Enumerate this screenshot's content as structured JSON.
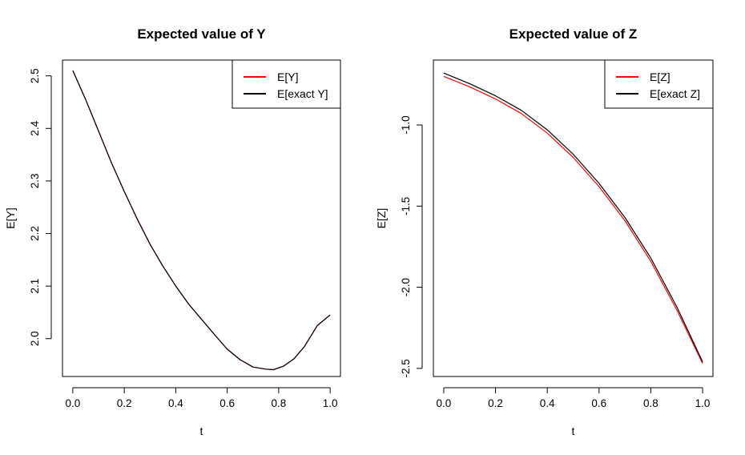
{
  "chart_data": [
    {
      "type": "line",
      "title": "Expected value of Y",
      "xlabel": "t",
      "ylabel": "E[Y]",
      "xlim": [
        -0.04,
        1.04
      ],
      "ylim": [
        1.928,
        2.53
      ],
      "xticks": [
        0.0,
        0.2,
        0.4,
        0.6,
        0.8,
        1.0
      ],
      "xtick_labels": [
        "0.0",
        "0.2",
        "0.4",
        "0.6",
        "0.8",
        "1.0"
      ],
      "yticks": [
        2.0,
        2.1,
        2.2,
        2.3,
        2.4,
        2.5
      ],
      "ytick_labels": [
        "2.0",
        "2.1",
        "2.2",
        "2.3",
        "2.4",
        "2.5"
      ],
      "legend_position": "top-right",
      "series": [
        {
          "name": "E[Y]",
          "color": "#ff0000",
          "x": [
            0.0,
            0.05,
            0.1,
            0.15,
            0.2,
            0.25,
            0.3,
            0.35,
            0.4,
            0.45,
            0.5,
            0.55,
            0.6,
            0.65,
            0.7,
            0.75,
            0.78,
            0.82,
            0.86,
            0.9,
            0.95,
            1.0
          ],
          "y": [
            2.51,
            2.455,
            2.395,
            2.335,
            2.28,
            2.228,
            2.18,
            2.138,
            2.1,
            2.066,
            2.037,
            2.008,
            1.98,
            1.96,
            1.946,
            1.942,
            1.941,
            1.948,
            1.962,
            1.985,
            2.025,
            2.045
          ]
        },
        {
          "name": "E[exact Y]",
          "color": "#000000",
          "x": [
            0.0,
            0.05,
            0.1,
            0.15,
            0.2,
            0.25,
            0.3,
            0.35,
            0.4,
            0.45,
            0.5,
            0.55,
            0.6,
            0.65,
            0.7,
            0.75,
            0.78,
            0.82,
            0.86,
            0.9,
            0.95,
            1.0
          ],
          "y": [
            2.51,
            2.455,
            2.395,
            2.335,
            2.28,
            2.228,
            2.18,
            2.138,
            2.1,
            2.066,
            2.037,
            2.008,
            1.98,
            1.96,
            1.946,
            1.942,
            1.941,
            1.948,
            1.962,
            1.985,
            2.025,
            2.045
          ]
        }
      ]
    },
    {
      "type": "line",
      "title": "Expected value of Z",
      "xlabel": "t",
      "ylabel": "E[Z]",
      "xlim": [
        -0.04,
        1.04
      ],
      "ylim": [
        -2.55,
        -0.6
      ],
      "xticks": [
        0.0,
        0.2,
        0.4,
        0.6,
        0.8,
        1.0
      ],
      "xtick_labels": [
        "0.0",
        "0.2",
        "0.4",
        "0.6",
        "0.8",
        "1.0"
      ],
      "yticks": [
        -1.0,
        -1.5,
        -2.0,
        -2.5
      ],
      "ytick_labels": [
        "-1.0",
        "-1.5",
        "-2.0",
        "-2.5"
      ],
      "legend_position": "top-right",
      "series": [
        {
          "name": "E[Z]",
          "color": "#ff0000",
          "x": [
            0.0,
            0.1,
            0.2,
            0.3,
            0.4,
            0.5,
            0.6,
            0.7,
            0.8,
            0.9,
            1.0
          ],
          "y": [
            -0.7,
            -0.765,
            -0.84,
            -0.93,
            -1.05,
            -1.2,
            -1.38,
            -1.59,
            -1.84,
            -2.14,
            -2.47
          ]
        },
        {
          "name": "E[exact Z]",
          "color": "#000000",
          "x": [
            0.0,
            0.1,
            0.2,
            0.3,
            0.4,
            0.5,
            0.6,
            0.7,
            0.8,
            0.9,
            1.0
          ],
          "y": [
            -0.68,
            -0.745,
            -0.82,
            -0.91,
            -1.03,
            -1.18,
            -1.36,
            -1.57,
            -1.82,
            -2.12,
            -2.46
          ]
        }
      ]
    }
  ]
}
